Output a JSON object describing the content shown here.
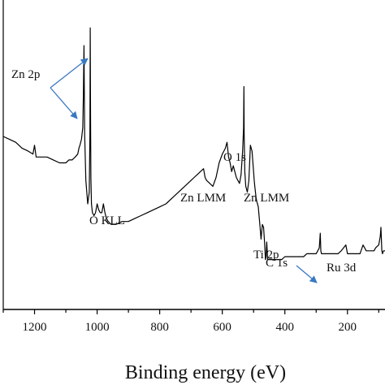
{
  "chart_data": {
    "type": "line",
    "xlabel": "Binding energy (eV)",
    "ylabel": "",
    "title": "",
    "xlim": [
      1300,
      80
    ],
    "x_reversed": true,
    "xticks": [
      1200,
      1000,
      800,
      600,
      400,
      200
    ],
    "xtick_labels": [
      "1200",
      "1000",
      "800",
      "600",
      "400",
      "200"
    ],
    "y_units": "arbitrary intensity (0-100)",
    "ylim": [
      0,
      100
    ],
    "grid": false,
    "line_color": "#000000",
    "arrow_color": "#3a78c2",
    "series": [
      {
        "x": [
          1300,
          1280,
          1260,
          1240,
          1220,
          1205,
          1200,
          1195,
          1180,
          1160,
          1140,
          1120,
          1100,
          1090,
          1080,
          1070,
          1062,
          1058,
          1055,
          1050,
          1046,
          1044,
          1042,
          1040,
          1036,
          1030,
          1025,
          1023,
          1022,
          1021,
          1020,
          1018,
          1015,
          1010,
          1005,
          1000,
          995,
          990,
          985,
          980,
          975,
          970,
          965,
          955,
          940,
          920,
          900,
          880,
          860,
          840,
          820,
          800,
          780,
          760,
          740,
          720,
          700,
          690,
          680,
          670,
          660,
          655,
          650,
          640,
          630,
          620,
          610,
          600,
          595,
          590,
          585,
          580,
          575,
          570,
          565,
          560,
          555,
          550,
          545,
          540,
          535,
          532,
          531,
          530,
          528,
          525,
          520,
          515,
          510,
          505,
          500,
          498,
          496,
          494,
          492,
          490,
          485,
          480,
          476,
          472,
          468,
          465,
          462,
          460,
          458,
          455,
          450,
          440,
          430,
          420,
          410,
          400,
          390,
          380,
          370,
          360,
          350,
          340,
          330,
          320,
          310,
          300,
          295,
          290,
          287,
          285,
          283,
          280,
          275,
          270,
          260,
          250,
          240,
          230,
          220,
          205,
          200,
          195,
          190,
          180,
          170,
          160,
          150,
          140,
          135,
          130,
          125,
          120,
          115,
          110,
          100,
          95,
          93,
          90,
          88,
          85,
          80
        ],
        "y": [
          59,
          58,
          57,
          55,
          54,
          53,
          56,
          52,
          52,
          52,
          51,
          50,
          50,
          51,
          51,
          52,
          53,
          55,
          56,
          58,
          62,
          72,
          90,
          60,
          44,
          36,
          40,
          60,
          96,
          65,
          45,
          36,
          33,
          32,
          33,
          36,
          34,
          33,
          33,
          36,
          33,
          31,
          30,
          29,
          29,
          30,
          30,
          31,
          32,
          33,
          34,
          35,
          36,
          38,
          40,
          42,
          44,
          45,
          46,
          47,
          48,
          45,
          44,
          43,
          42,
          45,
          50,
          53,
          54,
          55,
          57,
          52,
          50,
          47,
          49,
          47,
          45,
          44,
          43,
          46,
          54,
          62,
          76,
          60,
          47,
          42,
          40,
          44,
          56,
          54,
          47,
          44,
          42,
          40,
          38,
          37,
          35,
          29,
          24,
          29,
          28,
          23,
          17,
          18,
          23,
          17,
          17,
          17,
          17,
          17,
          17,
          18,
          18,
          18,
          18,
          18,
          18,
          18,
          19,
          19,
          19,
          19,
          20,
          21,
          26,
          20,
          19,
          19,
          19,
          19,
          19,
          19,
          19,
          19,
          20,
          22,
          19,
          19,
          19,
          19,
          19,
          19,
          22,
          20,
          20,
          20,
          20,
          20,
          20,
          21,
          22,
          25,
          28,
          20,
          19,
          20,
          20
        ]
      }
    ],
    "annotations": [
      {
        "text": "Zn 2p",
        "arrows_to": [
          1020,
          1042
        ]
      },
      {
        "text": "O 1s",
        "points_to": 531
      },
      {
        "text": "O KLL",
        "points_to": 980
      },
      {
        "text": "Zn LMM",
        "points_to": 585
      },
      {
        "text": "Zn LMM",
        "points_to": 500
      },
      {
        "text": "Ti 2p",
        "points_to": 458
      },
      {
        "text": "C 1s",
        "arrows_to": [
          285
        ]
      },
      {
        "text": "Ru 3d",
        "points_to": 285
      }
    ]
  }
}
